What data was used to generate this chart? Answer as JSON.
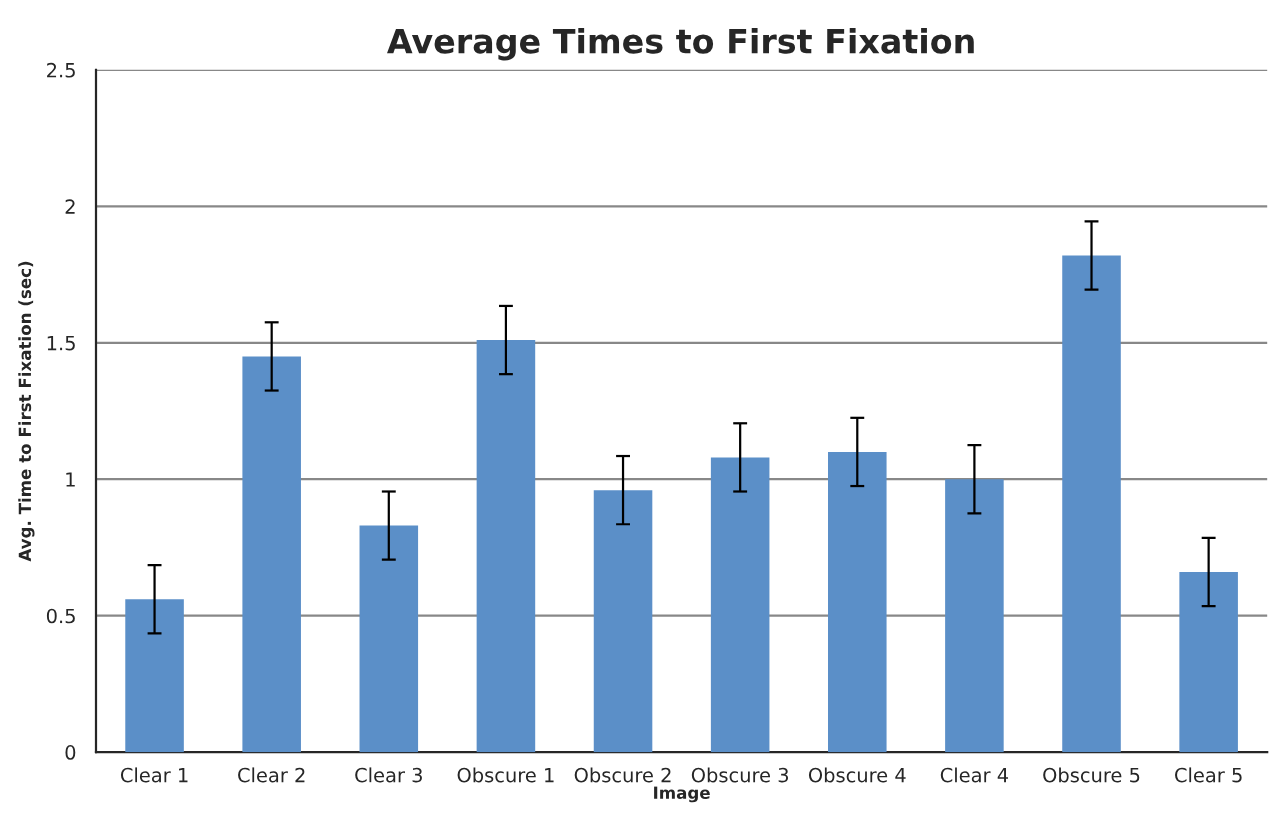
{
  "chart_data": {
    "type": "bar",
    "title": "Average Times to First Fixation",
    "xlabel": "Image",
    "ylabel": "Avg. Time to First Fixation (sec)",
    "categories": [
      "Clear 1",
      "Clear 2",
      "Clear 3",
      "Obscure 1",
      "Obscure 2",
      "Obscure 3",
      "Obscure 4",
      "Clear 4",
      "Obscure 5",
      "Clear 5"
    ],
    "values": [
      0.56,
      1.45,
      0.83,
      1.51,
      0.96,
      1.08,
      1.1,
      1.0,
      1.82,
      0.66
    ],
    "errors": [
      0.125,
      0.125,
      0.125,
      0.125,
      0.125,
      0.125,
      0.125,
      0.125,
      0.125,
      0.125
    ],
    "color": "#5b8fc8",
    "ylim": [
      0,
      2.5
    ],
    "yticks": [
      0,
      0.5,
      1,
      1.5,
      2,
      2.5
    ],
    "grid": "y",
    "legend": false
  }
}
